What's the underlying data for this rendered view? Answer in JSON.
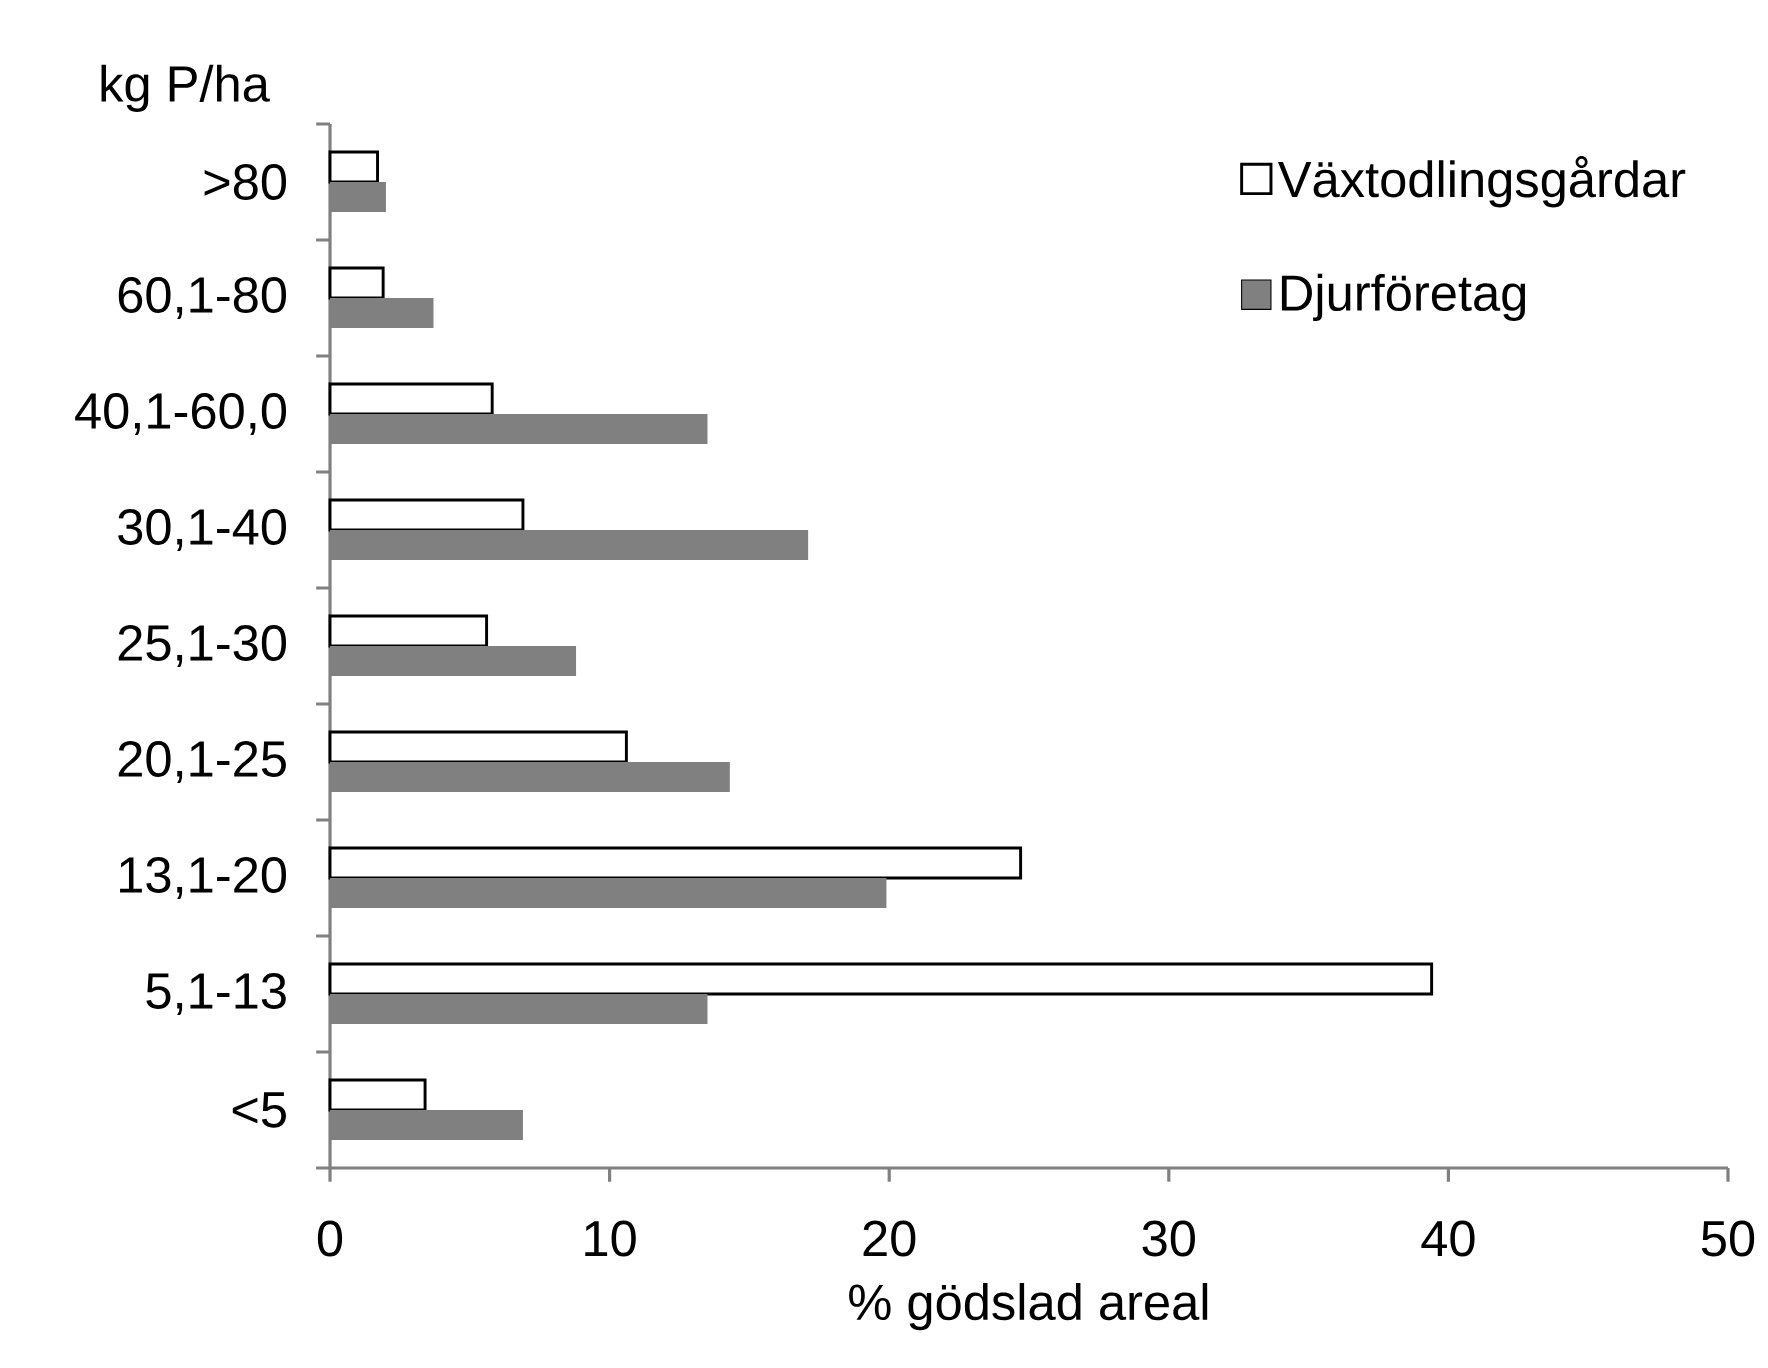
{
  "chart_data": {
    "type": "bar",
    "orientation": "horizontal",
    "ylabel": "kg P/ha",
    "xlabel": "% gödslad areal",
    "categories": [
      ">80",
      "60,1-80",
      "40,1-60,0",
      "30,1-40",
      "25,1-30",
      "20,1-25",
      "13,1-20",
      "5,1-13",
      "<5"
    ],
    "series": [
      {
        "name": "Växtodlingsgårdar",
        "color": "#ffffff",
        "values": [
          1.7,
          1.9,
          5.8,
          6.9,
          5.6,
          10.6,
          24.7,
          39.4,
          3.4
        ]
      },
      {
        "name": "Djurföretag",
        "color": "#808080",
        "values": [
          2.0,
          3.7,
          13.5,
          17.1,
          8.8,
          14.3,
          19.9,
          13.5,
          6.9
        ]
      }
    ],
    "xlim": [
      0,
      50
    ],
    "xticks": [
      0,
      10,
      20,
      30,
      40,
      50
    ],
    "grid": false,
    "legend": "top right"
  }
}
